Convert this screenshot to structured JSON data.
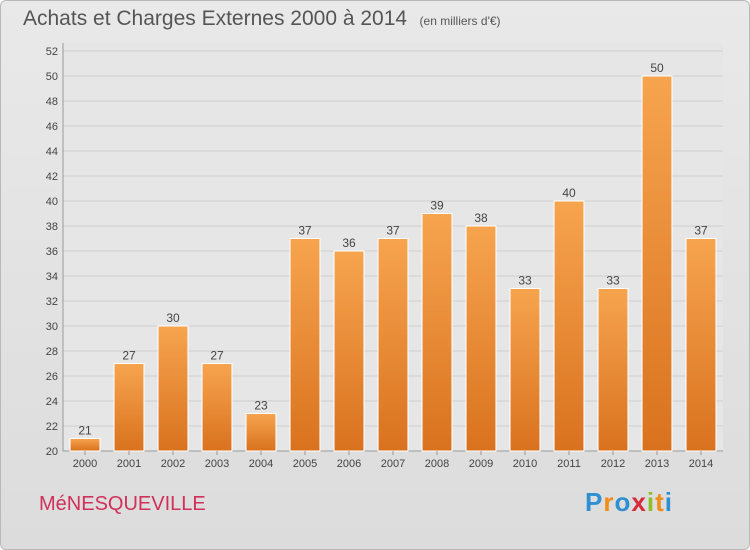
{
  "chart_data": {
    "type": "bar",
    "title": "Achats et Charges Externes 2000 à 2014",
    "unit_label": "(en milliers d'€)",
    "categories": [
      "2000",
      "2001",
      "2002",
      "2003",
      "2004",
      "2005",
      "2006",
      "2007",
      "2008",
      "2009",
      "2010",
      "2011",
      "2012",
      "2013",
      "2014"
    ],
    "values": [
      21,
      27,
      30,
      27,
      23,
      37,
      36,
      37,
      39,
      38,
      33,
      40,
      33,
      50,
      37
    ],
    "ylim": [
      20,
      52
    ],
    "yticks": [
      20,
      22,
      24,
      26,
      28,
      30,
      32,
      34,
      36,
      38,
      40,
      42,
      44,
      46,
      48,
      50,
      52
    ],
    "grid": true,
    "bar_color": "#f0933a"
  },
  "commune": "MéNESQUEVILLE",
  "brand": {
    "letters": [
      "P",
      "r",
      "o",
      "x",
      "i",
      "t",
      "i"
    ],
    "colors": [
      "#2f8fd0",
      "#f18c1a",
      "#2f8fd0",
      "#d8293b",
      "#8cbf26",
      "#f18c1a",
      "#2f8fd0"
    ]
  }
}
